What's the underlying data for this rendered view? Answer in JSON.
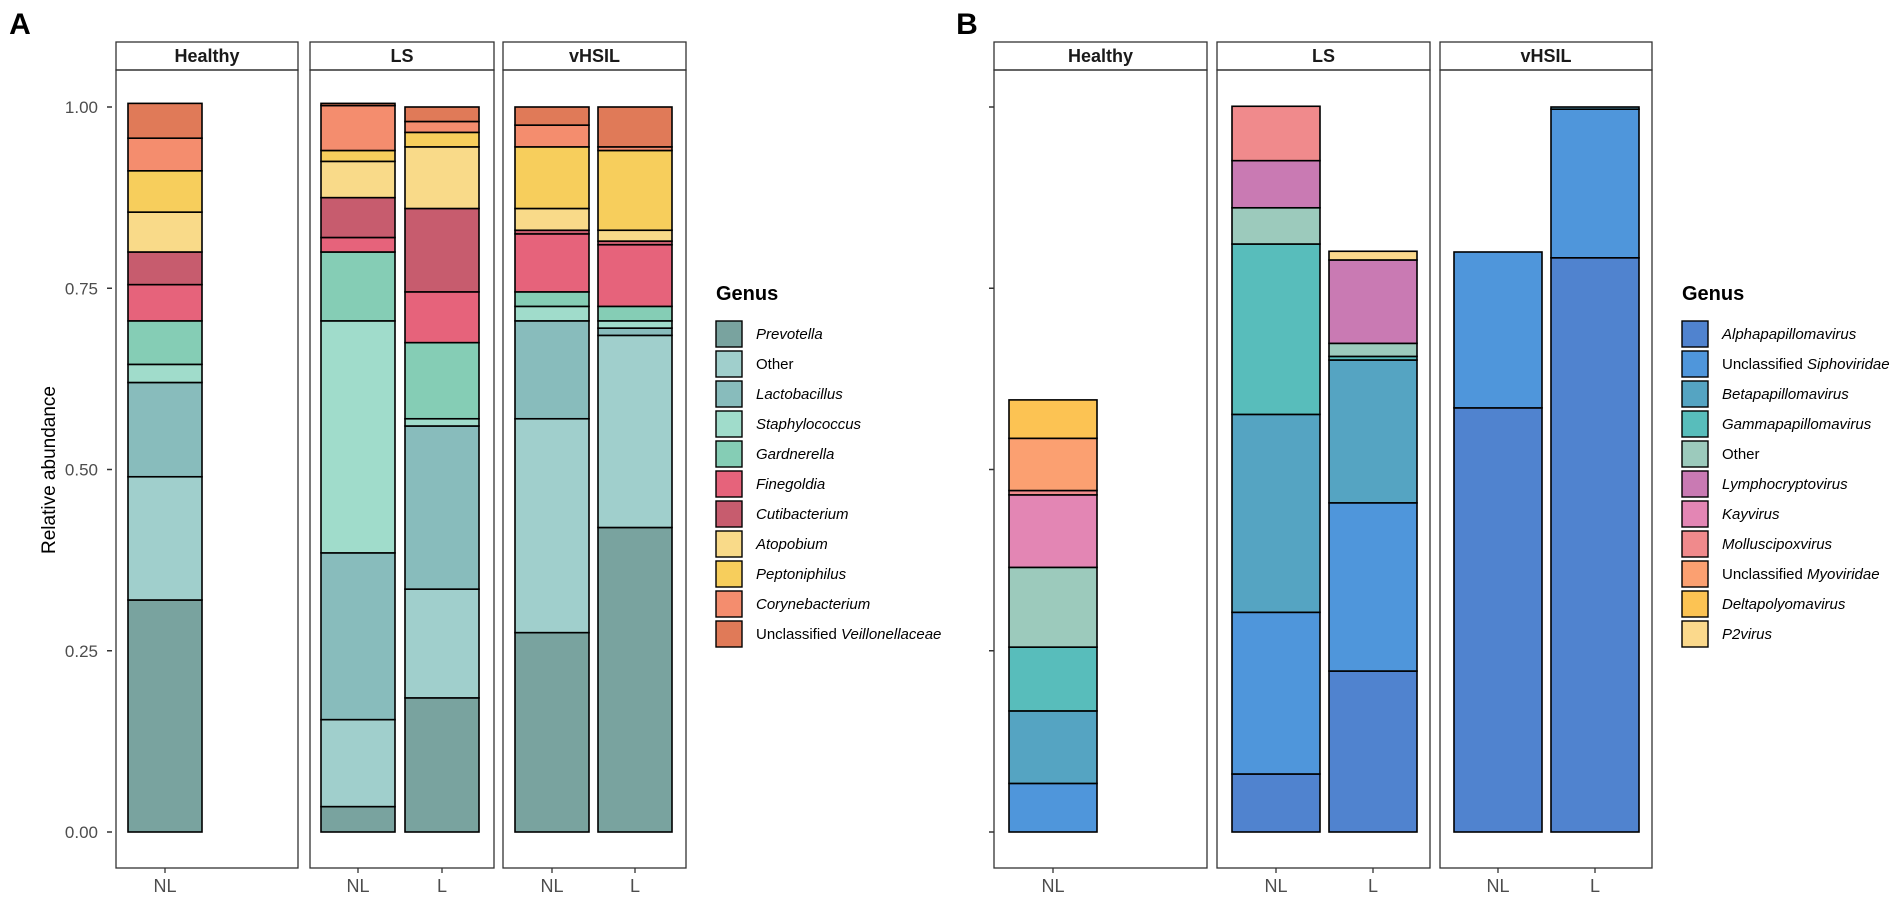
{
  "figure": {
    "ylabel": "Relative abundance",
    "legend_title": "Genus",
    "y_ticks": [
      "0.00",
      "0.25",
      "0.50",
      "0.75",
      "1.00"
    ]
  },
  "chart_data": [
    {
      "type": "bar",
      "stacked": true,
      "panel_label": "A",
      "ylabel": "Relative abundance",
      "ylim": [
        0,
        1
      ],
      "legend_title": "Genus",
      "legend_placement": "right",
      "facets": [
        {
          "title": "Healthy",
          "bars": [
            {
              "category": "NL",
              "values": [
                0.32,
                0.17,
                0.13,
                0.025,
                0.06,
                0.05,
                0.045,
                0.055,
                0.057,
                0.045,
                0.048
              ]
            }
          ]
        },
        {
          "title": "LS",
          "bars": [
            {
              "category": "NL",
              "values": [
                0.035,
                0.12,
                0.23,
                0.32,
                0.095,
                0.02,
                0.055,
                0.05,
                0.015,
                0.062,
                0.003
              ]
            },
            {
              "category": "L",
              "values": [
                0.185,
                0.15,
                0.225,
                0.01,
                0.105,
                0.07,
                0.115,
                0.085,
                0.02,
                0.015,
                0.02
              ]
            }
          ]
        },
        {
          "title": "vHSIL",
          "bars": [
            {
              "category": "NL",
              "values": [
                0.275,
                0.295,
                0.135,
                0.02,
                0.02,
                0.08,
                0.005,
                0.03,
                0.085,
                0.03,
                0.025
              ]
            },
            {
              "category": "L",
              "values": [
                0.42,
                0.265,
                0.01,
                0.01,
                0.02,
                0.085,
                0.005,
                0.015,
                0.11,
                0.005,
                0.055
              ]
            }
          ]
        }
      ],
      "series": [
        {
          "name": "Prevotella",
          "italic": true,
          "prefix": "",
          "color": "#79A39F"
        },
        {
          "name": "Other",
          "italic": false,
          "prefix": "",
          "color": "#A0CFCC"
        },
        {
          "name": "Lactobacillus",
          "italic": true,
          "prefix": "",
          "color": "#88BCBC"
        },
        {
          "name": "Staphylococcus",
          "italic": true,
          "prefix": "",
          "color": "#A0DCCB"
        },
        {
          "name": "Gardnerella",
          "italic": true,
          "prefix": "",
          "color": "#85CDB5"
        },
        {
          "name": "Finegoldia",
          "italic": true,
          "prefix": "",
          "color": "#E6637B"
        },
        {
          "name": "Cutibacterium",
          "italic": true,
          "prefix": "",
          "color": "#C75C6E"
        },
        {
          "name": "Atopobium",
          "italic": true,
          "prefix": "",
          "color": "#F9DA89"
        },
        {
          "name": "Peptoniphilus",
          "italic": true,
          "prefix": "",
          "color": "#F7CE5C"
        },
        {
          "name": "Corynebacterium",
          "italic": true,
          "prefix": "",
          "color": "#F48D6E"
        },
        {
          "name": "Veillonellaceae",
          "italic": true,
          "prefix": "Unclassified ",
          "color": "#E07A58"
        }
      ]
    },
    {
      "type": "bar",
      "stacked": true,
      "panel_label": "B",
      "ylabel": "",
      "ylim": [
        0,
        1
      ],
      "legend_title": "Genus",
      "legend_placement": "right",
      "facets": [
        {
          "title": "Healthy",
          "bars": [
            {
              "category": "NL",
              "values": [
                0,
                0.067,
                0.1,
                0.088,
                0.11,
                0,
                0.1,
                0.006,
                0.072,
                0.053,
                0
              ]
            }
          ]
        },
        {
          "title": "LS",
          "bars": [
            {
              "category": "NL",
              "values": [
                0.08,
                0.223,
                0.273,
                0.235,
                0.05,
                0.065,
                0,
                0.075,
                0,
                0,
                0
              ]
            },
            {
              "category": "L",
              "values": [
                0.222,
                0.232,
                0.197,
                0.005,
                0.018,
                0.115,
                0,
                0,
                0,
                0,
                0.012
              ]
            }
          ]
        },
        {
          "title": "vHSIL",
          "bars": [
            {
              "category": "NL",
              "values": [
                0.585,
                0.215,
                0,
                0,
                0,
                0,
                0,
                0,
                0,
                0,
                0
              ]
            },
            {
              "category": "L",
              "values": [
                0.792,
                0.205,
                0.003,
                0,
                0,
                0,
                0,
                0,
                0,
                0,
                0
              ]
            }
          ]
        }
      ],
      "series": [
        {
          "name": "Alphapapillomavirus",
          "italic": true,
          "prefix": "",
          "color": "#5083CF"
        },
        {
          "name": "Siphoviridae",
          "italic": true,
          "prefix": "Unclassified ",
          "color": "#4F96DB"
        },
        {
          "name": "Betapapillomavirus",
          "italic": true,
          "prefix": "",
          "color": "#55A4C2"
        },
        {
          "name": "Gammapapillomavirus",
          "italic": true,
          "prefix": "",
          "color": "#58BDBB"
        },
        {
          "name": "Other",
          "italic": false,
          "prefix": "",
          "color": "#9CCABC"
        },
        {
          "name": "Lymphocryptovirus",
          "italic": true,
          "prefix": "",
          "color": "#C97AB3"
        },
        {
          "name": "Kayvirus",
          "italic": true,
          "prefix": "",
          "color": "#E386B4"
        },
        {
          "name": "Molluscipoxvirus",
          "italic": true,
          "prefix": "",
          "color": "#F08A8C"
        },
        {
          "name": "Myoviridae",
          "italic": true,
          "prefix": "Unclassified ",
          "color": "#FBA071"
        },
        {
          "name": "Deltapolyomavirus",
          "italic": true,
          "prefix": "",
          "color": "#FCC353"
        },
        {
          "name": "P2virus",
          "italic": true,
          "prefix": "",
          "color": "#FBD98C"
        }
      ]
    }
  ]
}
